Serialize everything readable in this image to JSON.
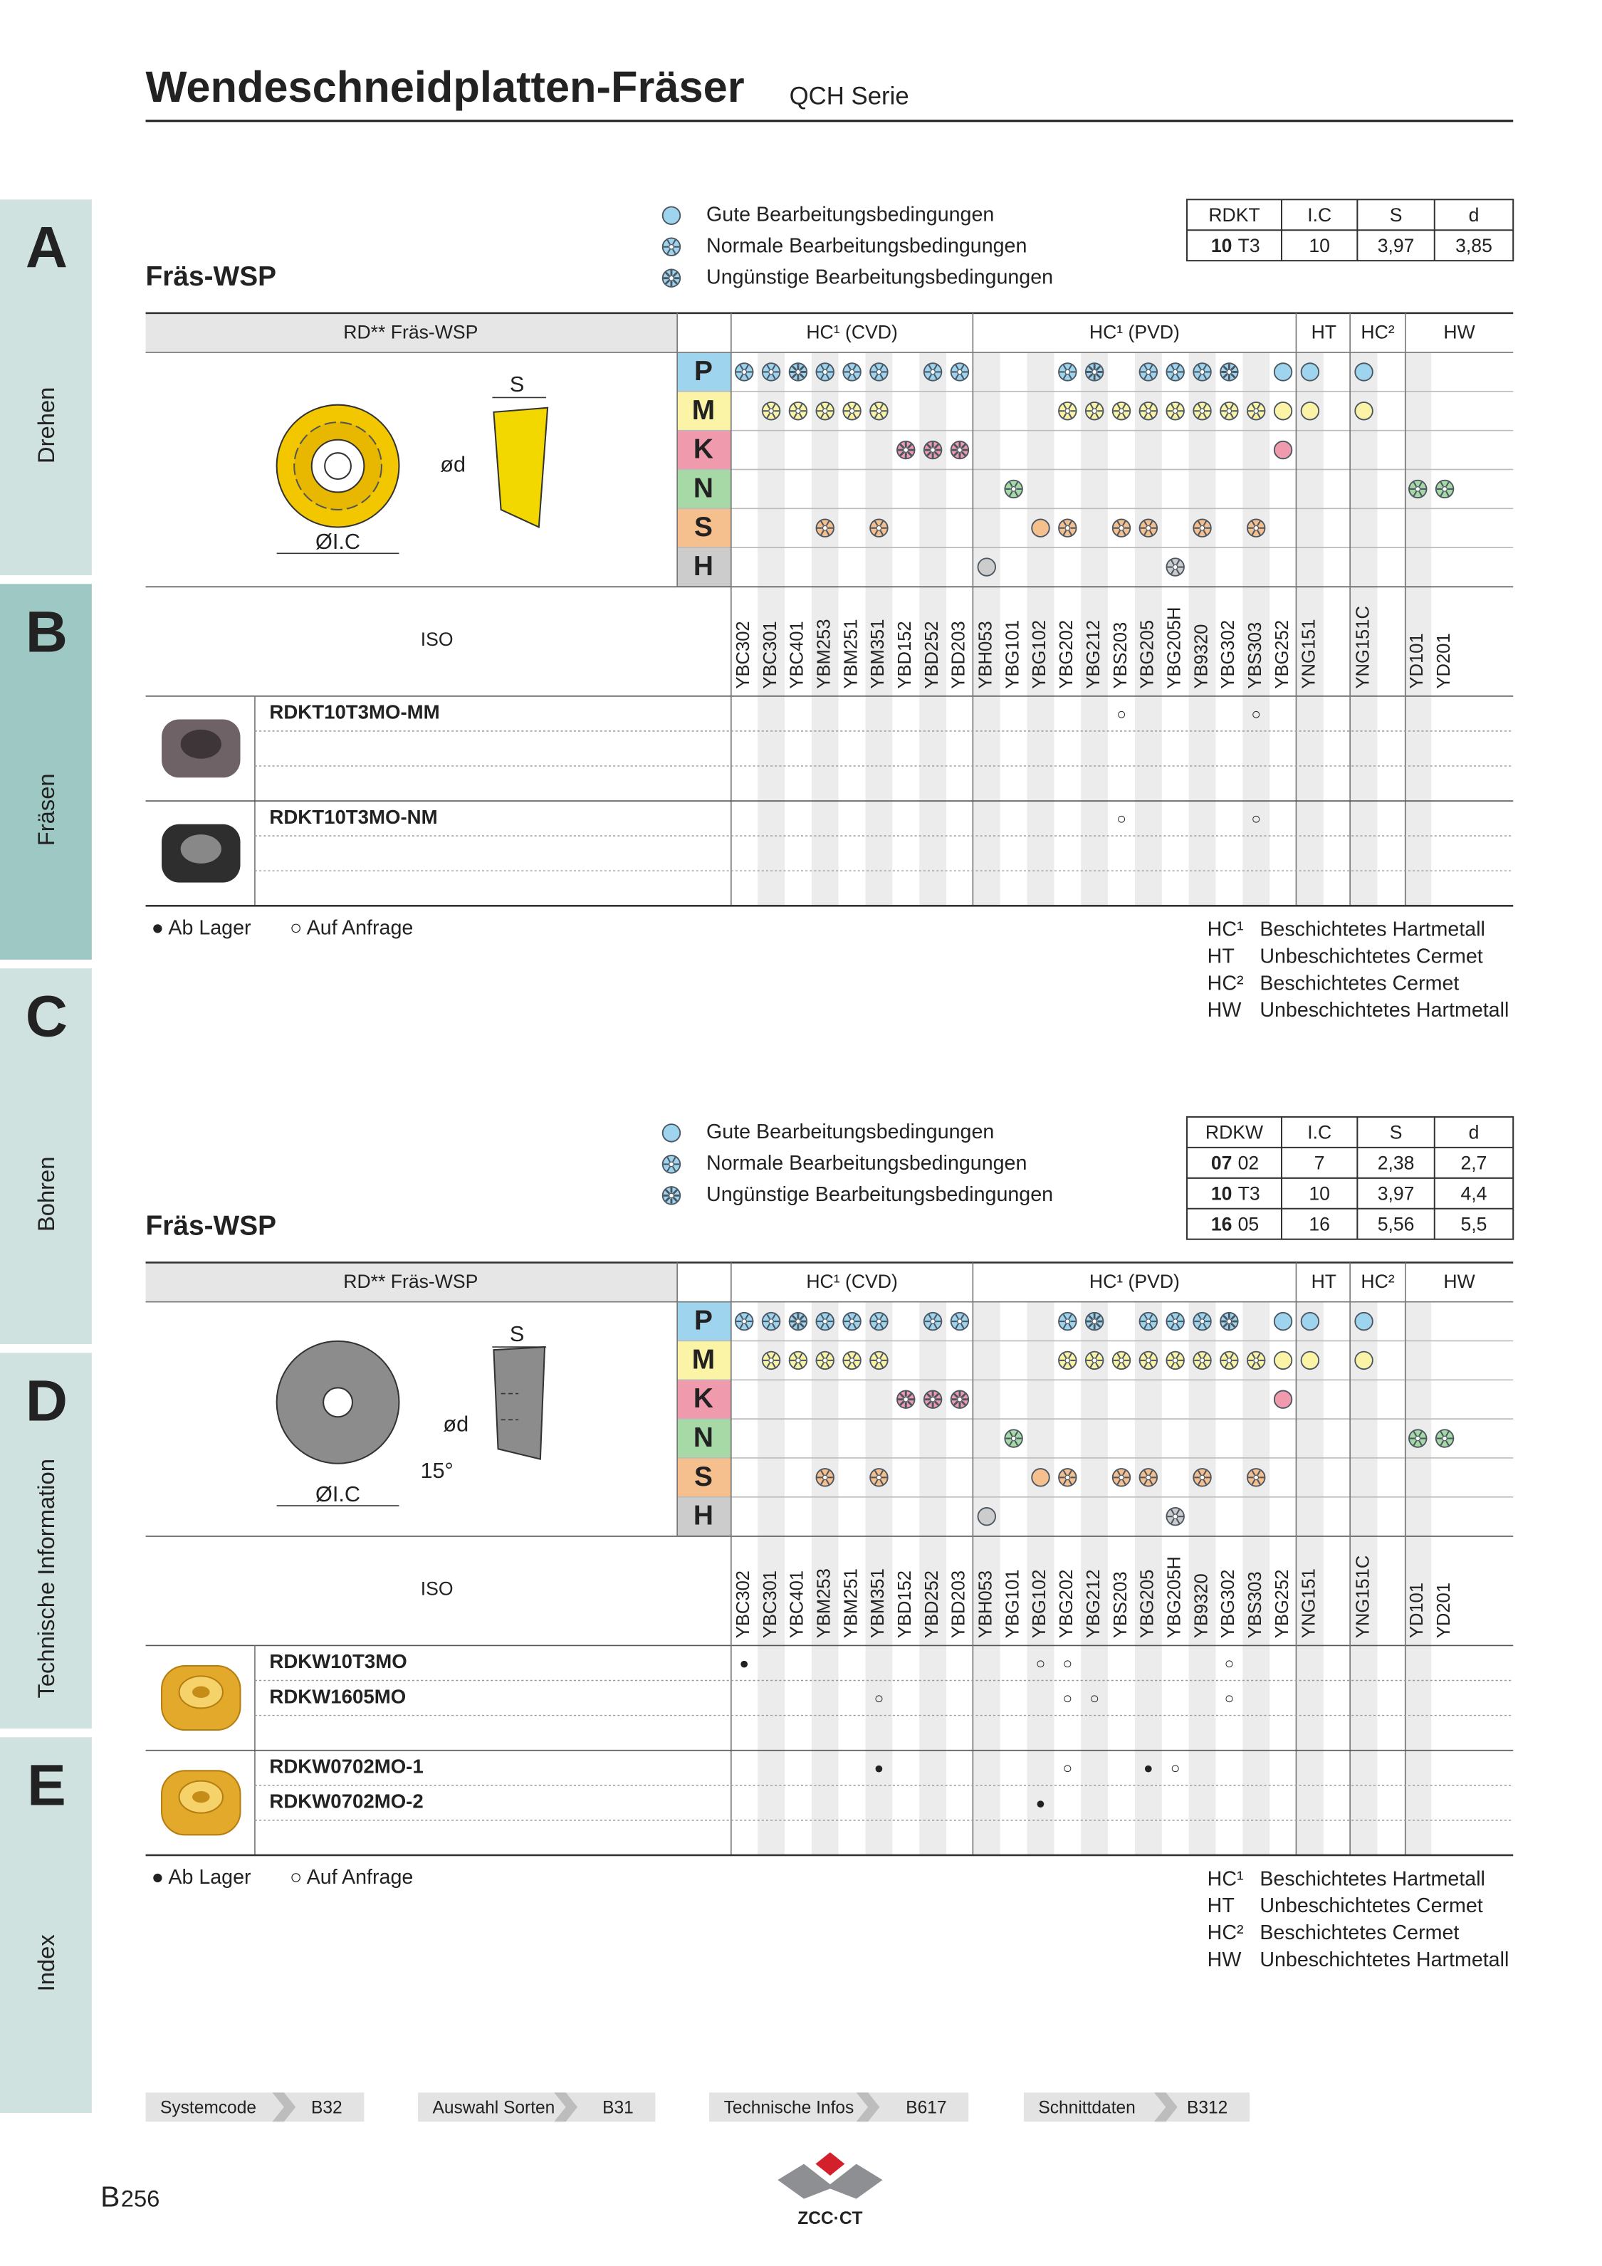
{
  "header": {
    "title": "Wendeschneidplatten-Fräser",
    "series": "QCH Serie"
  },
  "side_tabs": [
    {
      "letter": "A",
      "label": "Drehen"
    },
    {
      "letter": "B",
      "label": "Fräsen"
    },
    {
      "letter": "C",
      "label": "Bohren"
    },
    {
      "letter": "D",
      "label": "Technische Information"
    },
    {
      "letter": "E",
      "label": "Index"
    }
  ],
  "sections": [
    {
      "title": "Fräs-WSP",
      "legend": [
        "Gute Bearbeitungsbedingungen",
        "Normale Bearbeitungsbedingungen",
        "Ungünstige Bearbeitungsbedingungen"
      ],
      "dims": {
        "header": [
          "RDKT",
          "I.C",
          "S",
          "d"
        ],
        "rows": [
          [
            "10",
            "T3",
            "10",
            "3,97",
            "3,85"
          ]
        ]
      },
      "table_header": "RD** Fräs-WSP",
      "groups": [
        "HC¹ (CVD)",
        "HC¹ (PVD)",
        "HT",
        "HC²",
        "HW"
      ],
      "materials": [
        "P",
        "M",
        "K",
        "N",
        "S",
        "H"
      ],
      "iso_label": "ISO",
      "grades": [
        "YBC302",
        "YBC301",
        "YBC401",
        "YBM253",
        "YBM251",
        "YBM351",
        "YBD152",
        "YBD252",
        "YBD203",
        "YBH053",
        "YBG101",
        "YBG102",
        "YBG202",
        "YBG212",
        "YBS203",
        "YBG205",
        "YBG205H",
        "YB9320",
        "YBG302",
        "YBS303",
        "YBG252",
        "YNG151",
        "YNG151C",
        "YD101",
        "YD201"
      ],
      "drawing_labels": [
        "S",
        "ød",
        "ØI.C"
      ],
      "products": [
        [
          {
            "name": "RDKT10T3MO-MM",
            "marks": [
              null,
              null,
              null,
              null,
              null,
              null,
              null,
              null,
              null,
              null,
              null,
              null,
              null,
              null,
              "○",
              null,
              null,
              null,
              null,
              "○",
              null,
              null,
              null,
              null,
              null
            ]
          }
        ],
        [
          {
            "name": "RDKT10T3MO-NM",
            "marks": [
              null,
              null,
              null,
              null,
              null,
              null,
              null,
              null,
              null,
              null,
              null,
              null,
              null,
              null,
              "○",
              null,
              null,
              null,
              null,
              "○",
              null,
              null,
              null,
              null,
              null
            ]
          }
        ]
      ],
      "stock": [
        "● Ab Lager",
        "○ Auf Anfrage"
      ],
      "notes": [
        [
          "HC¹",
          "Beschichtetes Hartmetall"
        ],
        [
          "HT",
          "Unbeschichtetes Cermet"
        ],
        [
          "HC²",
          "Beschichtetes Cermet"
        ],
        [
          "HW",
          "Unbeschichtetes Hartmetall"
        ]
      ]
    },
    {
      "title": "Fräs-WSP",
      "legend": [
        "Gute Bearbeitungsbedingungen",
        "Normale Bearbeitungsbedingungen",
        "Ungünstige Bearbeitungsbedingungen"
      ],
      "dims": {
        "header": [
          "RDKW",
          "I.C",
          "S",
          "d"
        ],
        "rows": [
          [
            "07",
            "02",
            "7",
            "2,38",
            "2,7"
          ],
          [
            "10",
            "T3",
            "10",
            "3,97",
            "4,4"
          ],
          [
            "16",
            "05",
            "16",
            "5,56",
            "5,5"
          ]
        ]
      },
      "table_header": "RD** Fräs-WSP",
      "groups": [
        "HC¹ (CVD)",
        "HC¹ (PVD)",
        "HT",
        "HC²",
        "HW"
      ],
      "materials": [
        "P",
        "M",
        "K",
        "N",
        "S",
        "H"
      ],
      "iso_label": "ISO",
      "grades": [
        "YBC302",
        "YBC301",
        "YBC401",
        "YBM253",
        "YBM251",
        "YBM351",
        "YBD152",
        "YBD252",
        "YBD203",
        "YBH053",
        "YBG101",
        "YBG102",
        "YBG202",
        "YBG212",
        "YBS203",
        "YBG205",
        "YBG205H",
        "YB9320",
        "YBG302",
        "YBS303",
        "YBG252",
        "YNG151",
        "YNG151C",
        "YD101",
        "YD201"
      ],
      "drawing_labels": [
        "S",
        "ød",
        "15°",
        "ØI.C"
      ],
      "products": [
        [
          {
            "name": "RDKW10T3MO",
            "marks": [
              "●",
              null,
              null,
              null,
              null,
              null,
              null,
              null,
              null,
              null,
              null,
              "○",
              "○",
              null,
              null,
              null,
              null,
              null,
              "○",
              null,
              null,
              null,
              null,
              null,
              null
            ]
          },
          {
            "name": "RDKW1605MO",
            "marks": [
              null,
              null,
              null,
              null,
              null,
              "○",
              null,
              null,
              null,
              null,
              null,
              null,
              "○",
              "○",
              null,
              null,
              null,
              null,
              "○",
              null,
              null,
              null,
              null,
              null,
              null
            ]
          }
        ],
        [
          {
            "name": "RDKW0702MO-1",
            "marks": [
              null,
              null,
              null,
              null,
              null,
              "●",
              null,
              null,
              null,
              null,
              null,
              null,
              "○",
              null,
              null,
              "●",
              "○",
              null,
              null,
              null,
              null,
              null,
              null,
              null,
              null
            ]
          },
          {
            "name": "RDKW0702MO-2",
            "marks": [
              null,
              null,
              null,
              null,
              null,
              null,
              null,
              null,
              null,
              null,
              null,
              "●",
              null,
              null,
              null,
              null,
              null,
              null,
              null,
              null,
              null,
              null,
              null,
              null,
              null
            ]
          }
        ]
      ],
      "stock": [
        "● Ab Lager",
        "○ Auf Anfrage"
      ],
      "notes": [
        [
          "HC¹",
          "Beschichtetes Hartmetall"
        ],
        [
          "HT",
          "Unbeschichtetes Cermet"
        ],
        [
          "HC²",
          "Beschichtetes Cermet"
        ],
        [
          "HW",
          "Unbeschichtetes Hartmetall"
        ]
      ]
    }
  ],
  "footer": {
    "links": [
      [
        "Systemcode",
        "B32"
      ],
      [
        "Auswahl Sorten",
        "B31"
      ],
      [
        "Technische Infos",
        "B617"
      ],
      [
        "Schnittdaten",
        "B312"
      ]
    ],
    "page": [
      "B",
      "256"
    ],
    "logo": "ZCC·CT"
  }
}
